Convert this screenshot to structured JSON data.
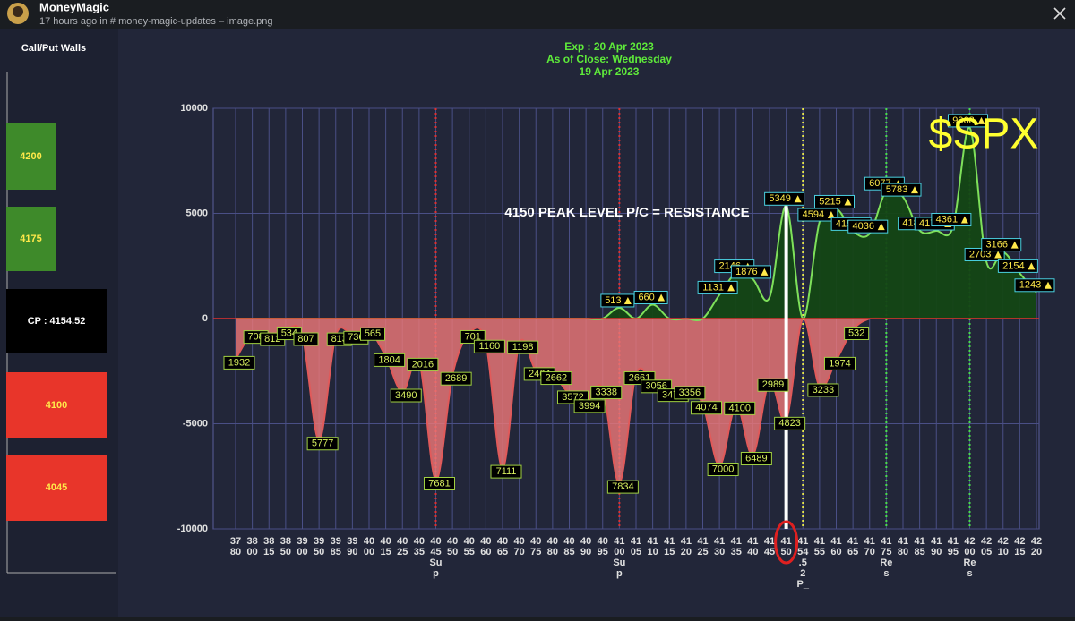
{
  "header": {
    "author": "MoneyMagic",
    "meta": "17 hours ago in # money-magic-updates  – image.png"
  },
  "left_panel": {
    "title": "Call/Put Walls",
    "walls": [
      "4200",
      "4175",
      "CP : 4154.52",
      "4100",
      "4045"
    ]
  },
  "chart_data": {
    "type": "area",
    "title": [
      "Exp : 20 Apr 2023",
      "As of Close: Wednesday",
      "19 Apr 2023"
    ],
    "annotations": [
      "4150 PEAK LEVEL P/C = RESISTANCE",
      "$SPX"
    ],
    "categories": [
      "37\n80",
      "38\n00",
      "38\n15",
      "38\n50",
      "39\n00",
      "39\n50",
      "39\n85",
      "39\n90",
      "40\n00",
      "40\n15",
      "40\n25",
      "40\n35",
      "40\n45\nSu\np",
      "40\n50",
      "40\n55",
      "40\n60",
      "40\n65",
      "40\n70",
      "40\n75",
      "40\n80",
      "40\n85",
      "40\n90",
      "40\n95",
      "41\n00\nSu\np",
      "41\n05",
      "41\n10",
      "41\n15",
      "41\n20",
      "41\n25",
      "41\n30",
      "41\n35",
      "41\n40",
      "41\n45",
      "41\n50",
      "41\n54\n.5\n2\nP_",
      "41\n55",
      "41\n60",
      "41\n65",
      "41\n70",
      "41\n75\nRe\ns",
      "41\n80",
      "41\n85",
      "41\n90",
      "41\n95",
      "42\n00\nRe\ns",
      "42\n05",
      "42\n10",
      "42\n15",
      "42\n20"
    ],
    "series": [
      {
        "color": "#e05a5a",
        "values": [
          -1932,
          -708,
          -812,
          -534,
          -807,
          -5777,
          -813,
          -736,
          -565,
          -1804,
          -3490,
          -2016,
          -7681,
          -2689,
          -701,
          -1160,
          -7111,
          -1198,
          -2464,
          -2662,
          -3572,
          -3994,
          -3338,
          -7834,
          -2661,
          -3056,
          -3474,
          -3356,
          -4074,
          -7000,
          -4100,
          -6489,
          -2989,
          -4823,
          0,
          -3233,
          -1974,
          -532,
          0,
          0,
          0,
          0,
          0,
          0,
          0,
          0,
          0,
          0,
          0
        ],
        "value_labels": [
          "1932",
          "708",
          "812",
          "534",
          "807",
          "5777",
          "813",
          "736",
          "565",
          "1804",
          "3490",
          "2016",
          "7681",
          "2689",
          "701",
          "1160",
          "7111",
          "1198",
          "2464",
          "2662",
          "3572",
          "3994",
          "3338",
          "7834",
          "2661",
          "3056",
          "3474",
          "3356",
          "4074",
          "7000",
          "4100",
          "6489",
          "2989",
          "4823",
          null,
          "3233",
          "1974",
          "532",
          null,
          null,
          null,
          null,
          null,
          null,
          null,
          null,
          null,
          null,
          null
        ]
      },
      {
        "color": "#7ee05a",
        "values": [
          0,
          0,
          0,
          0,
          0,
          0,
          0,
          0,
          0,
          0,
          0,
          0,
          0,
          0,
          0,
          0,
          0,
          0,
          0,
          0,
          0,
          0,
          0,
          513,
          0,
          660,
          0,
          0,
          0,
          1131,
          2146,
          1876,
          1000,
          5349,
          0,
          4594,
          5215,
          4154,
          4036,
          6077,
          5783,
          4182,
          4170,
          4361,
          9068,
          2703,
          3166,
          2154,
          1243
        ],
        "value_labels": [
          null,
          null,
          null,
          null,
          null,
          null,
          null,
          null,
          null,
          null,
          null,
          null,
          null,
          null,
          null,
          null,
          null,
          null,
          null,
          null,
          null,
          null,
          null,
          "513",
          null,
          "660",
          null,
          null,
          null,
          "1131",
          "2146",
          "1876",
          null,
          "5349",
          null,
          "4594",
          "5215",
          "4154",
          "4036",
          "6077",
          "5783",
          "4182",
          "4170",
          "4361",
          "9068",
          "2703",
          "3166",
          "2154",
          "1243"
        ]
      }
    ],
    "ylim": [
      -10000,
      10000
    ],
    "yticks": [
      -10000,
      -5000,
      0,
      5000,
      10000
    ],
    "grid": true
  }
}
